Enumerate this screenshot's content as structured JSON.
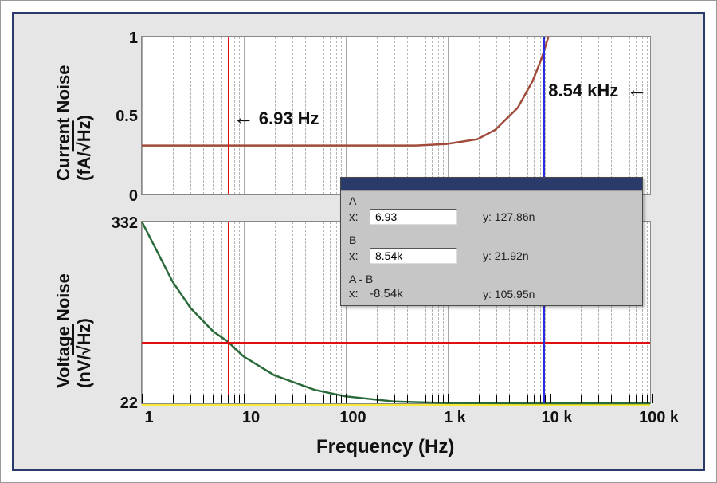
{
  "figure": {
    "background_color": "#e6e6e6",
    "border_color": "#2a3a6a",
    "plot_bg": "#ffffff",
    "grid_color": "#b5b5b5",
    "axis_color": "#888888",
    "xlabel": "Frequency (Hz)",
    "xlabel_fontsize": 24,
    "x_scale": "log",
    "xlim": [
      1,
      100000
    ],
    "x_decade_ticks": [
      1,
      10,
      100,
      1000,
      10000,
      100000
    ],
    "x_ticklabels": [
      "1",
      "10",
      "100",
      "1 k",
      "10 k",
      "100 k"
    ],
    "tick_fontsize": 20
  },
  "cursors": {
    "A": {
      "color": "#e01010",
      "freq_hz": 6.93,
      "voltage_noise_n": 127.86
    },
    "B": {
      "color": "#2a2ae0",
      "freq_hz": 8540,
      "voltage_noise_n": 21.92
    },
    "A_minus_B": {
      "freq_delta": "-8.54k",
      "voltage_delta_n": 105.95
    }
  },
  "annotations": {
    "A_label": "6.93 Hz",
    "B_label": "8.54 kHz",
    "font_size": 22,
    "font_weight": 700,
    "arrow_color": "#000000"
  },
  "top_plot": {
    "type": "line",
    "ylabel_line1": "Current Noise",
    "ylabel_line2_prefix": "(fA/",
    "ylabel_line2_unit": "√Hz",
    "ylabel_line2_suffix": ")",
    "y_scale": "linear",
    "ylim": [
      0,
      1
    ],
    "y_ticks": [
      0,
      0.5,
      1
    ],
    "y_ticklabels": [
      "0",
      "0.5",
      "1"
    ],
    "trace_color": "#a04a3a",
    "trace_width": 2.5,
    "series_x_hz": [
      1,
      10,
      100,
      500,
      1000,
      2000,
      3000,
      5000,
      7000,
      8540,
      10000
    ],
    "series_y_fA_rtHz": [
      0.31,
      0.31,
      0.31,
      0.31,
      0.32,
      0.35,
      0.41,
      0.55,
      0.72,
      0.86,
      1.0
    ]
  },
  "bottom_plot": {
    "type": "line",
    "ylabel_line1": "Voltage Noise",
    "ylabel_line2_prefix": "(nV/",
    "ylabel_line2_unit": "√Hz",
    "ylabel_line2_suffix": ")",
    "y_scale": "linear",
    "ylim": [
      22,
      332
    ],
    "y_ticks": [
      22,
      332
    ],
    "y_ticklabels": [
      "22",
      "332"
    ],
    "trace_color": "#2a6a3a",
    "trace_width": 2.5,
    "series_x_hz": [
      1,
      2,
      3,
      5,
      6.93,
      10,
      20,
      50,
      100,
      300,
      1000,
      10000,
      100000
    ],
    "series_y_nV_rtHz": [
      332,
      230,
      185,
      145,
      127.86,
      102,
      70,
      45,
      34,
      25,
      22.5,
      22,
      22
    ],
    "h_cursor_y": 127.86,
    "h_cursor_color": "#e01010",
    "baseline_highlight_color": "#f7e935"
  },
  "readout_box": {
    "titlebar_color": "#2a3a6a",
    "bg_color": "#c6c6c6",
    "rows": {
      "A": {
        "label": "A",
        "x_key": "x:",
        "x_val": "6.93",
        "y_key": "y:",
        "y_val": "127.86n"
      },
      "B": {
        "label": "B",
        "x_key": "x:",
        "x_val": "8.54k",
        "y_key": "y:",
        "y_val": "21.92n"
      },
      "AB": {
        "label": "A - B",
        "x_key": "x:",
        "x_val": "-8.54k",
        "y_key": "y:",
        "y_val": "105.95n"
      }
    }
  }
}
